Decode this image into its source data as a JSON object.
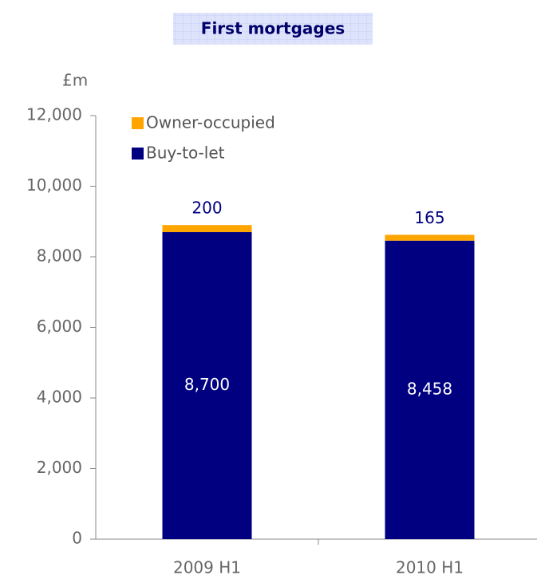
{
  "chart_data": {
    "type": "stacked-bar",
    "title": "First mortgages",
    "y_label": "£m",
    "categories": [
      "2009 H1",
      "2010 H1"
    ],
    "series": [
      {
        "name": "Buy-to-let",
        "color": "#000080",
        "values": [
          8700,
          8458
        ],
        "value_labels": [
          "8,700",
          "8,458"
        ]
      },
      {
        "name": "Owner-occupied",
        "color": "#ffa500",
        "values": [
          200,
          165
        ]
      }
    ],
    "ylim": [
      0,
      12000
    ],
    "yticks": [
      0,
      {
        "value": 2000,
        "label": "2,000"
      },
      {
        "value": 4000,
        "label": "4,000"
      },
      {
        "value": 6000,
        "label": "6,000"
      },
      {
        "value": 8000,
        "label": "8,000"
      },
      {
        "value": 10000,
        "label": "10,000"
      },
      {
        "value": 12000,
        "label": "12,000"
      }
    ],
    "legend": "top-left"
  }
}
